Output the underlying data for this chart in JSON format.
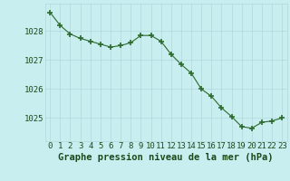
{
  "x": [
    0,
    1,
    2,
    3,
    4,
    5,
    6,
    7,
    8,
    9,
    10,
    11,
    12,
    13,
    14,
    15,
    16,
    17,
    18,
    19,
    20,
    21,
    22,
    23
  ],
  "y": [
    1028.65,
    1028.2,
    1027.9,
    1027.75,
    1027.65,
    1027.55,
    1027.45,
    1027.5,
    1027.6,
    1027.85,
    1027.85,
    1027.65,
    1027.2,
    1026.85,
    1026.55,
    1026.0,
    1025.75,
    1025.35,
    1025.05,
    1024.7,
    1024.65,
    1024.85,
    1024.9,
    1025.0
  ],
  "line_color": "#2d6a2d",
  "marker_color": "#2d6a2d",
  "bg_color": "#c8eef0",
  "grid_color": "#b0d8da",
  "text_color": "#1a4a1a",
  "ylabel_ticks": [
    1025,
    1026,
    1027,
    1028
  ],
  "xlim": [
    -0.5,
    23.5
  ],
  "ylim": [
    1024.2,
    1028.95
  ],
  "xtick_labels": [
    "0",
    "1",
    "2",
    "3",
    "4",
    "5",
    "6",
    "7",
    "8",
    "9",
    "10",
    "11",
    "12",
    "13",
    "14",
    "15",
    "16",
    "17",
    "18",
    "19",
    "20",
    "21",
    "22",
    "23"
  ],
  "xlabel": "Graphe pression niveau de la mer (hPa)",
  "tick_fontsize": 6.5,
  "label_fontsize": 7.5
}
